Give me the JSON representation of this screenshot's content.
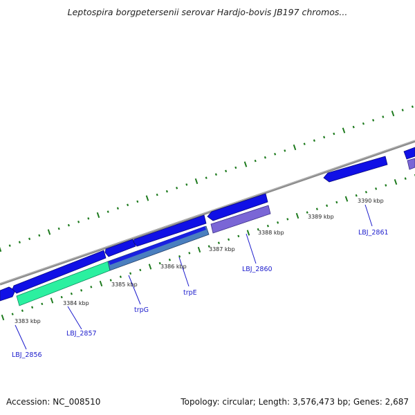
{
  "title": "Leptospira borgpetersenii serovar Hardjo-bovis JB197 chromos...",
  "footer": {
    "accession": "Accession: NC_008510",
    "summary": "Topology: circular; Length: 3,576,473 bp; Genes: 2,687"
  },
  "colors": {
    "backbone": "#8c8c8c",
    "cds_forward": "#1010e6",
    "cds_reverse": "#1010e6",
    "cds_green": "#2bf0a0",
    "cds_steel": "#4a7fbf",
    "cds_violet": "#7a66d6",
    "tick": "#1d7a1d",
    "gene_label": "#1a1acc"
  },
  "tick_labels": [
    "3383 kbp",
    "3384 kbp",
    "3385 kbp",
    "3386 kbp",
    "3387 kbp",
    "3388 kbp",
    "3389 kbp",
    "3390 kbp"
  ],
  "gene_labels": [
    "LBJ_2856",
    "LBJ_2857",
    "trpG",
    "trpE",
    "LBJ_2860",
    "LBJ_2861"
  ]
}
